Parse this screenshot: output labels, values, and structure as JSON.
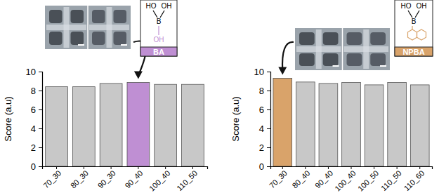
{
  "chart_data": [
    {
      "type": "bar",
      "y_label": "Score (a.u)",
      "categories": [
        "70_30",
        "80_30",
        "90_30",
        "90_40",
        "100_40",
        "110_50"
      ],
      "values": [
        8.4,
        8.4,
        8.75,
        8.85,
        8.65,
        8.65
      ],
      "colors": [
        "#c8c8c8",
        "#c8c8c8",
        "#c8c8c8",
        "#bf8fd3",
        "#c8c8c8",
        "#c8c8c8"
      ],
      "ylim": [
        0,
        10
      ],
      "yticks": [
        0,
        2,
        4,
        6,
        8,
        10
      ],
      "annotations": [
        "HO",
        "OH",
        "B",
        "OH",
        "BA"
      ]
    },
    {
      "type": "bar",
      "y_label": "Score (a.u)",
      "categories": [
        "70_30",
        "80_40",
        "90_40",
        "100_40",
        "100_50",
        "110_50",
        "110_60"
      ],
      "values": [
        9.3,
        8.9,
        8.75,
        8.85,
        8.6,
        8.85,
        8.6
      ],
      "colors": [
        "#d9a36a",
        "#c8c8c8",
        "#c8c8c8",
        "#c8c8c8",
        "#c8c8c8",
        "#c8c8c8",
        "#c8c8c8"
      ],
      "ylim": [
        0,
        10
      ],
      "yticks": [
        0,
        2,
        4,
        6,
        8,
        10
      ],
      "annotations": [
        "HO",
        "OH",
        "B",
        "NPBA"
      ]
    }
  ]
}
